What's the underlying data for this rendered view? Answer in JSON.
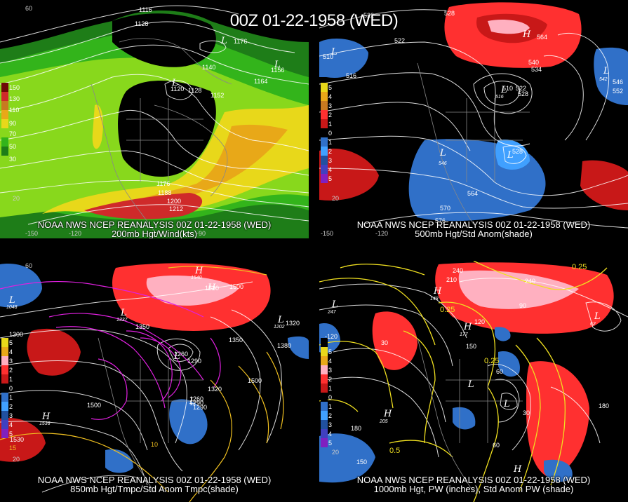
{
  "title": "00Z 01-22-1958 (WED)",
  "panels": {
    "p200": {
      "caption1": "NOAA NWS NCEP REANALYSIS 00Z 01-22-1958 (WED)",
      "caption2": "200mb Hgt/Wind(kts)",
      "legend": [
        "150",
        "130",
        "110",
        "90",
        "70",
        "50",
        "30"
      ],
      "colors": {
        "c1": "#1e7d18",
        "c2": "#33b41b",
        "c3": "#88d81c",
        "c4": "#e8d81a",
        "c5": "#e8a818",
        "c6": "#c87a20",
        "c7": "#cf2a2a",
        "c8": "#6e0808"
      },
      "labels": [
        "1116",
        "1128",
        "1176",
        "1140",
        "1156",
        "1120",
        "1128",
        "1152",
        "1164",
        "1176",
        "1188",
        "1200",
        "1212",
        "1188"
      ],
      "centers": [
        "L",
        "L",
        "L"
      ],
      "ticks": [
        "60",
        "-150",
        "-120",
        "-90",
        "20"
      ]
    },
    "p500": {
      "caption1": "NOAA NWS NCEP REANALYSIS 00Z 01-22-1958 (WED)",
      "caption2": "500mb Hgt/Std Anom(shade)",
      "legend": [
        "5",
        "4",
        "3",
        "2",
        "1",
        "0",
        "1",
        "2",
        "3",
        "4",
        "5"
      ],
      "colors": {
        "pos1": "#ff3030",
        "pos2": "#c81818",
        "pos3": "#ffb0c0",
        "neg1": "#3070c8",
        "neg2": "#40a0ff"
      },
      "labels": [
        "522",
        "528",
        "522",
        "510",
        "516",
        "540",
        "534",
        "564",
        "546",
        "552",
        "510",
        "522",
        "528",
        "528",
        "564",
        "570",
        "576",
        "522",
        "534",
        "540"
      ],
      "centers": [
        "L",
        "H",
        "L",
        "L",
        "L",
        "L"
      ],
      "center_values": [
        "516",
        "564",
        "510",
        "542",
        "546",
        "522"
      ],
      "ticks": [
        "-150",
        "-120",
        "20"
      ]
    },
    "p850": {
      "caption1": "NOAA NWS NCEP REANALYSIS 00Z 01-22-1958 (WED)",
      "caption2": "850mb Hgt/Tmpc/Std Anom Tmpc(shade)",
      "legend": [
        "5",
        "4",
        "3",
        "2",
        "1",
        "0",
        "1",
        "2",
        "3",
        "4",
        "5"
      ],
      "colors": {
        "pos": "#ff3030",
        "pink": "#ffb0c0",
        "neg": "#3070c8",
        "magenta": "#e020e0",
        "yellow": "#f0c020"
      },
      "labels": [
        "1500",
        "1530",
        "1350",
        "1320",
        "1380",
        "1290",
        "1260",
        "1290",
        "1350",
        "1500",
        "1260",
        "1290",
        "1320",
        "1500",
        "1530",
        "1380",
        "1230",
        "1290",
        "1300"
      ],
      "temps": [
        "15",
        "10",
        "-10",
        "-20"
      ],
      "centers": [
        "H",
        "L",
        "L",
        "H",
        "L",
        "L",
        "H",
        "L"
      ],
      "center_values": [
        "1540",
        "1337",
        "1048",
        "1355",
        "1536",
        "1202"
      ],
      "ticks": [
        "60",
        "20"
      ]
    },
    "p1000": {
      "caption1": "NOAA NWS NCEP REANALYSIS 00Z 01-22-1958 (WED)",
      "caption2": "1000mb Hgt, PW (inches), Std Anom PW (shade)",
      "legend": [
        "-120",
        "5",
        "4",
        "3",
        "2",
        "1",
        "0",
        "1",
        "2",
        "3",
        "4",
        "5"
      ],
      "colors": {
        "pos": "#ff3030",
        "pink": "#ffb0c0",
        "neg": "#3070c8",
        "yellow": "#f0e020"
      },
      "labels": [
        "240",
        "210",
        "240",
        "90",
        "120",
        "150",
        "60",
        "30",
        "180",
        "150",
        "0.25",
        "0.25",
        "0.5",
        "0.25",
        "0.25",
        "60",
        "150",
        "180",
        "30"
      ],
      "centers": [
        "H",
        "L",
        "H",
        "L",
        "L",
        "H",
        "L",
        "H"
      ],
      "center_values": [
        "148",
        "247",
        "177",
        "62",
        "205",
        "213",
        "184"
      ],
      "ticks": [
        "20"
      ]
    }
  }
}
